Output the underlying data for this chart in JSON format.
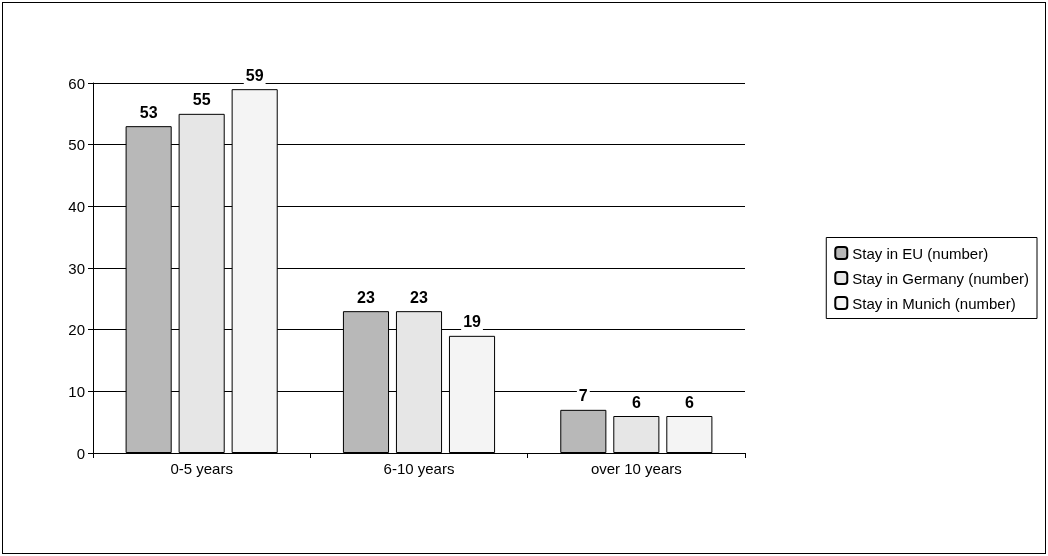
{
  "chart_data": {
    "type": "bar",
    "categories": [
      "0-5 years",
      "6-10 years",
      "over 10 years"
    ],
    "series": [
      {
        "name": "Stay in EU (number)",
        "color": "#b8b8b8",
        "values": [
          53,
          23,
          7
        ]
      },
      {
        "name": "Stay in Germany (number)",
        "color": "#e6e6e6",
        "values": [
          55,
          23,
          6
        ]
      },
      {
        "name": "Stay in Munich (number)",
        "color": "#f4f4f4",
        "values": [
          59,
          19,
          6
        ]
      }
    ],
    "ylim": [
      0,
      60
    ],
    "yticks": [
      0,
      10,
      20,
      30,
      40,
      50,
      60
    ],
    "grid": "y",
    "legend": "right",
    "data_labels": true
  }
}
